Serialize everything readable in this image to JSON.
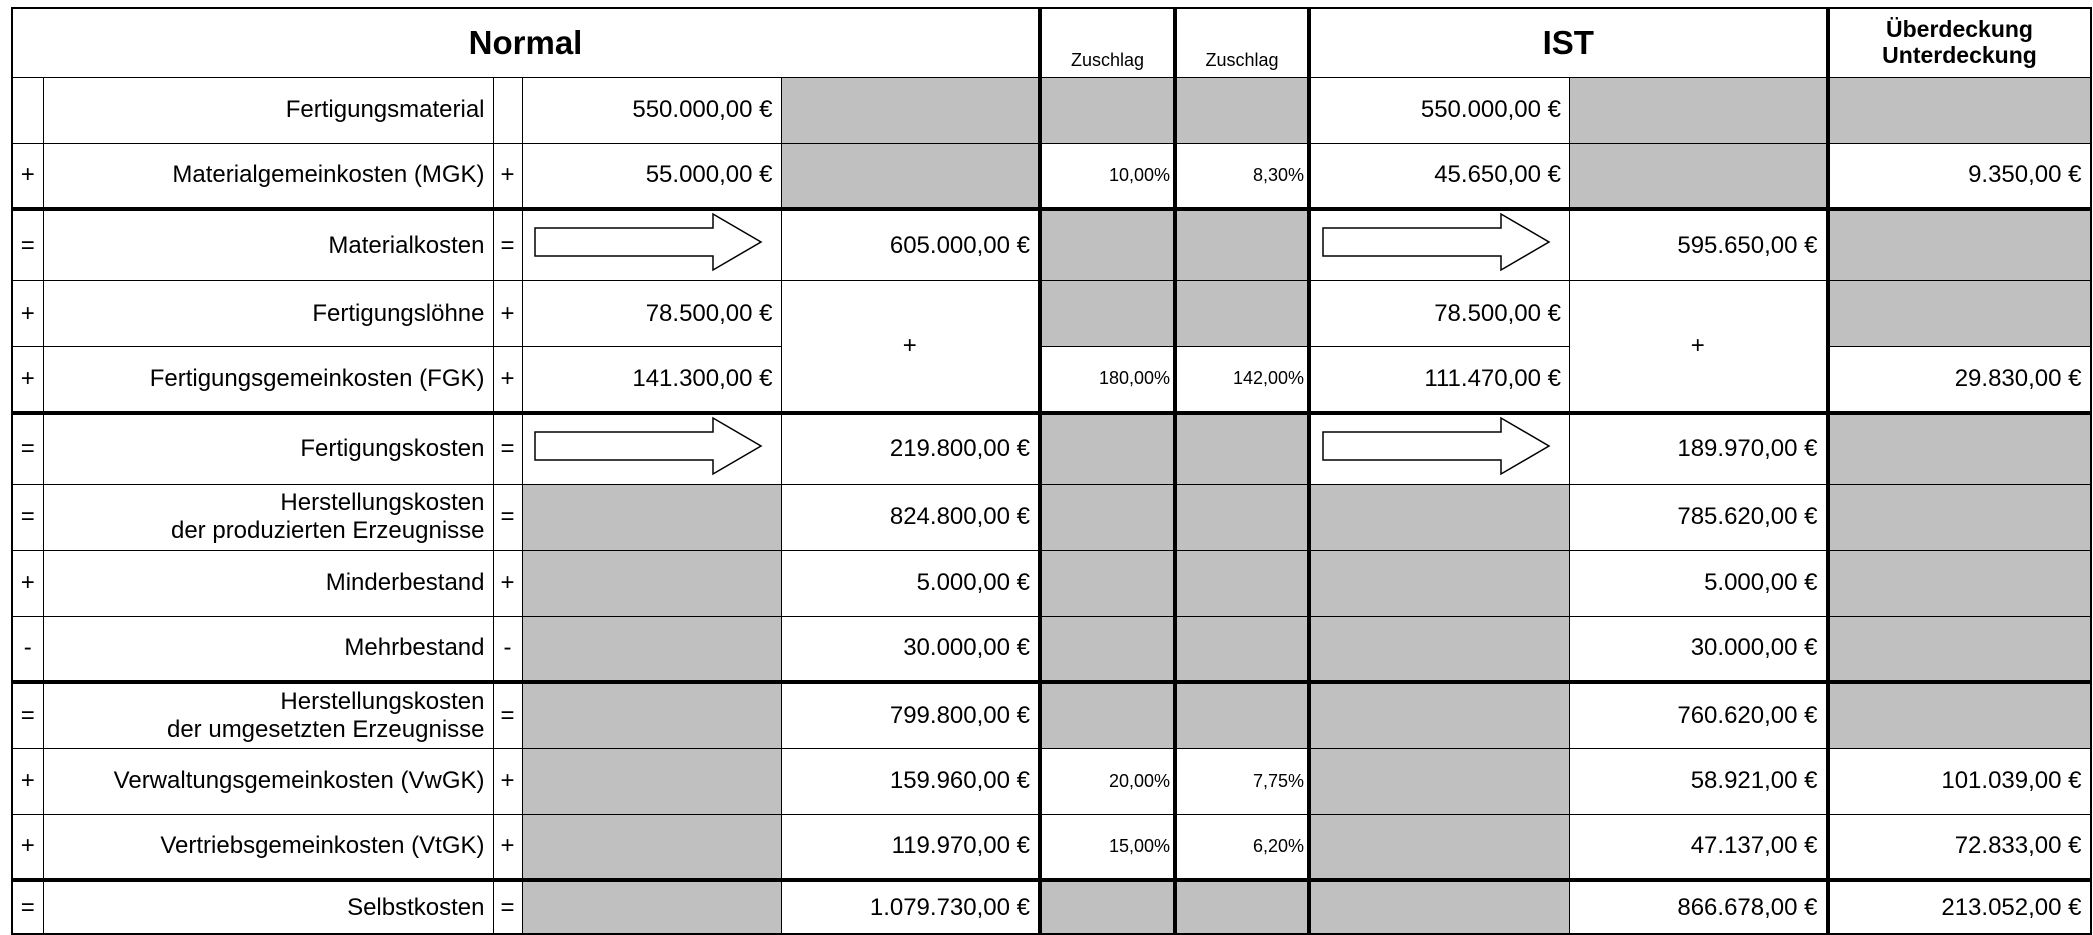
{
  "header": {
    "normal": "Normal",
    "zuschlag_normal": "Zuschlag",
    "zuschlag_ist": "Zuschlag",
    "ist": "IST",
    "difference": "Überdeckung\nUnterdeckung"
  },
  "rows": [
    {
      "label": "Fertigungsmaterial",
      "normal": "550.000,00 €",
      "ist": "550.000,00 €"
    },
    {
      "op": "+",
      "label": "Materialgemeinkosten (MGK)",
      "normal": "55.000,00 €",
      "zuschlag_normal": "10,00%",
      "zuschlag_ist": "8,30%",
      "ist": "45.650,00 €",
      "difference": "9.350,00 €"
    },
    {
      "op": "=",
      "label": "Materialkosten",
      "normal_sum": "605.000,00 €",
      "ist_sum": "595.650,00 €"
    },
    {
      "op": "+",
      "label": "Fertigungslöhne",
      "normal": "78.500,00 €",
      "normal_sum": "+",
      "ist": "78.500,00 €",
      "ist_sum": "+"
    },
    {
      "op": "+",
      "label": "Fertigungsgemeinkosten (FGK)",
      "normal": "141.300,00 €",
      "zuschlag_normal": "180,00%",
      "zuschlag_ist": "142,00%",
      "ist": "111.470,00 €",
      "difference": "29.830,00 €"
    },
    {
      "op": "=",
      "label": "Fertigungskosten",
      "normal_sum": "219.800,00 €",
      "ist_sum": "189.970,00 €"
    },
    {
      "op": "=",
      "label": "Herstellungskosten\nder produzierten Erzeugnisse",
      "normal_sum": "824.800,00 €",
      "ist_sum": "785.620,00 €"
    },
    {
      "op": "+",
      "label": "Minderbestand",
      "normal_sum": "5.000,00 €",
      "ist_sum": "5.000,00 €"
    },
    {
      "op": "-",
      "label": "Mehrbestand",
      "normal_sum": "30.000,00 €",
      "ist_sum": "30.000,00 €"
    },
    {
      "op": "=",
      "label": "Herstellungskosten\nder umgesetzten Erzeugnisse",
      "normal_sum": "799.800,00 €",
      "ist_sum": "760.620,00 €"
    },
    {
      "op": "+",
      "label": "Verwaltungsgemeinkosten (VwGK)",
      "normal_sum": "159.960,00 €",
      "zuschlag_normal": "20,00%",
      "zuschlag_ist": "7,75%",
      "ist_sum": "58.921,00 €",
      "difference": "101.039,00 €"
    },
    {
      "op": "+",
      "label": "Vertriebsgemeinkosten (VtGK)",
      "normal_sum": "119.970,00 €",
      "zuschlag_normal": "15,00%",
      "zuschlag_ist": "6,20%",
      "ist_sum": "47.137,00 €",
      "difference": "72.833,00 €"
    },
    {
      "op": "=",
      "label": "Selbstkosten",
      "normal_sum": "1.079.730,00 €",
      "ist_sum": "866.678,00 €",
      "difference": "213.052,00 €"
    }
  ]
}
